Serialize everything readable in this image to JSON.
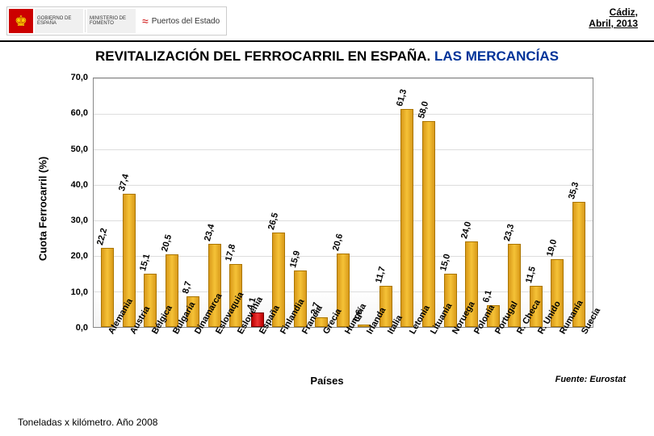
{
  "header": {
    "gov1": "GOBIERNO\nDE ESPAÑA",
    "gov2": "MINISTERIO\nDE FOMENTO",
    "puertos": "Puertos del Estado",
    "city": "Cádiz,",
    "date": "Abril, 2013"
  },
  "title": {
    "black": "REVITALIZACIÓN DEL FERROCARRIL EN ESPAÑA. ",
    "blue": "LAS MERCANCÍAS"
  },
  "chart": {
    "type": "bar",
    "ylabel": "Cuota Ferrocarril (%)",
    "xlabel": "Países",
    "source": "Fuente: Eurostat",
    "ylim": [
      0,
      70
    ],
    "ytick_step": 10,
    "y_ticks": [
      "0,0",
      "10,0",
      "20,0",
      "30,0",
      "40,0",
      "50,0",
      "60,0",
      "70,0"
    ],
    "background_color": "#ffffff",
    "grid_color": "#dddddd",
    "bar_color": "#f5c237",
    "bar_border": "#aa7500",
    "highlight_color": "#e33333",
    "highlight_index": 7,
    "categories": [
      "Alemania",
      "Austria",
      "Bélgica",
      "Bulgaria",
      "Dinamarca",
      "Eslovaquia",
      "Eslovenia",
      "España",
      "Finlandia",
      "Francia",
      "Grecia",
      "Hungría",
      "Irlanda",
      "Italia",
      "Letonia",
      "Lituania",
      "Noruega",
      "Polonia",
      "Portugal",
      "R. Checa",
      "R. Unido",
      "Rumanía",
      "Suecia"
    ],
    "values": [
      22.2,
      37.4,
      15.1,
      20.5,
      8.7,
      23.4,
      17.8,
      4.1,
      26.5,
      15.9,
      2.7,
      20.6,
      0.6,
      11.7,
      61.3,
      58.0,
      15.0,
      24.0,
      6.1,
      23.3,
      11.5,
      19.0,
      35.3
    ],
    "value_labels": [
      "22,2",
      "37,4",
      "15,1",
      "20,5",
      "8,7",
      "23,4",
      "17,8",
      "4,1",
      "26,5",
      "15,9",
      "2,7",
      "20,6",
      "0,6",
      "11,7",
      "61,3",
      "58,0",
      "15,0",
      "24,0",
      "6,1",
      "23,3",
      "11,5",
      "19,0",
      "35,3"
    ]
  },
  "footnote": "Toneladas x kilómetro. Año 2008"
}
